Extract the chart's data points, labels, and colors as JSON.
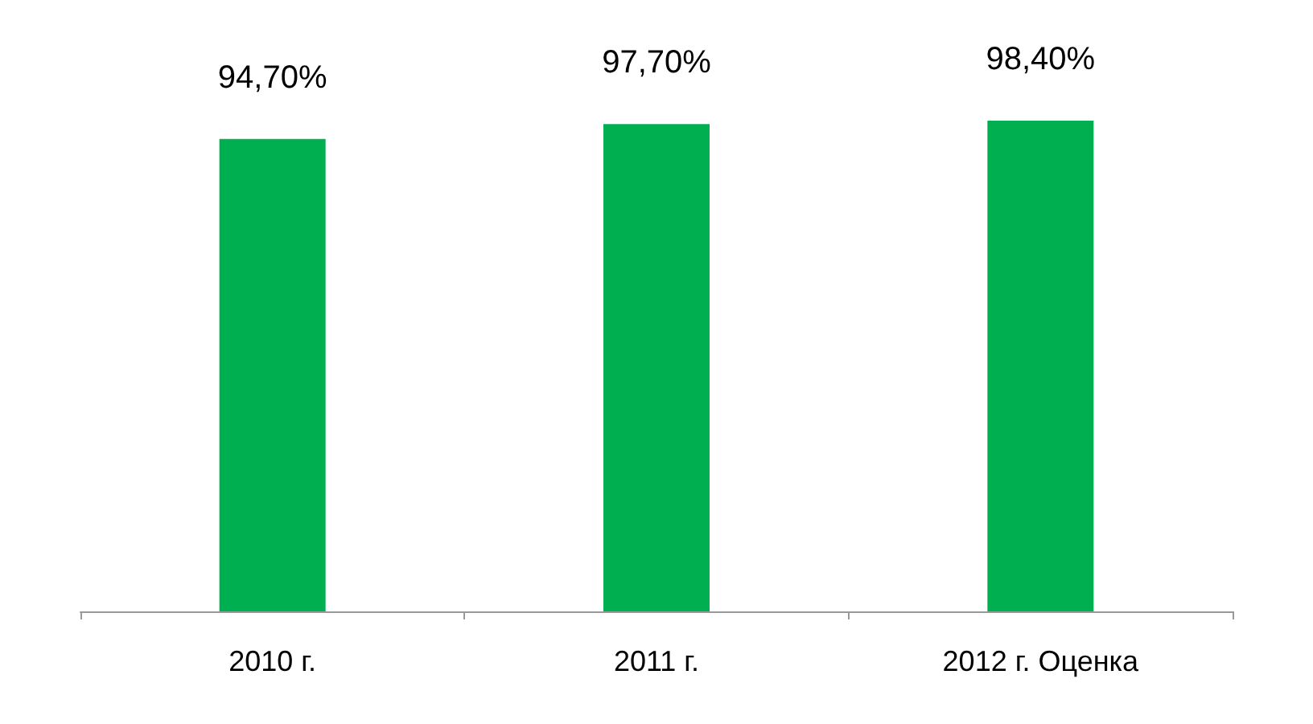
{
  "chart_data": {
    "type": "bar",
    "categories": [
      "2010 г.",
      "2011 г.",
      "2012 г. Оценка"
    ],
    "values": [
      94.7,
      97.7,
      98.4
    ],
    "value_labels": [
      "94,70%",
      "97,70%",
      "98,40%"
    ],
    "color": "#00b050"
  }
}
